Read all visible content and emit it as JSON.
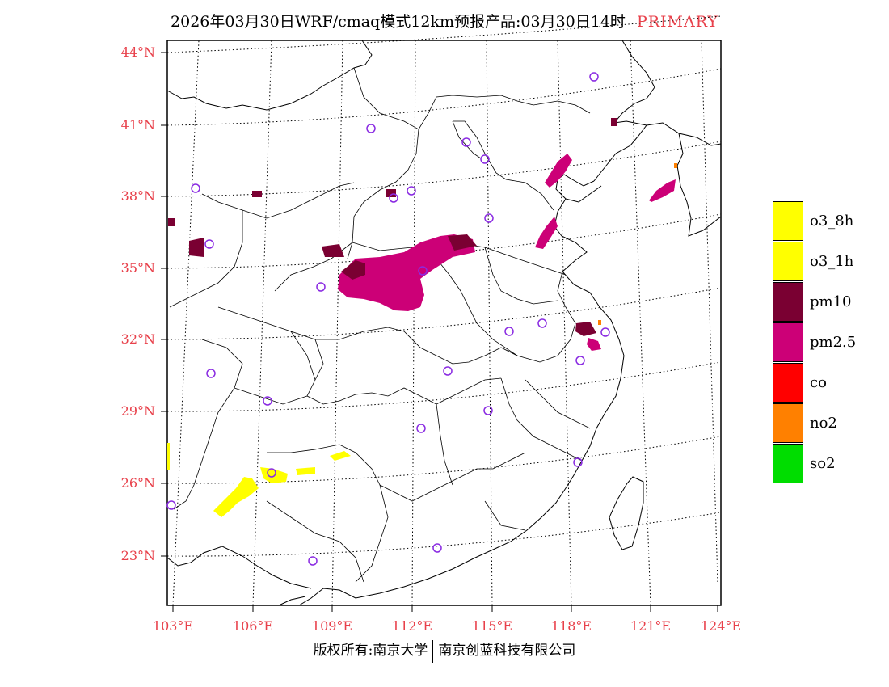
{
  "title": {
    "main": "2026年03月30日WRF/cmaq模式12km预报产品:03月30日14时",
    "tag": "PRIMARY"
  },
  "map": {
    "lat_labels": [
      "44°N",
      "41°N",
      "38°N",
      "35°N",
      "32°N",
      "29°N",
      "26°N",
      "23°N"
    ],
    "lon_labels": [
      "103°E",
      "106°E",
      "109°E",
      "112°E",
      "115°E",
      "118°E",
      "121°E",
      "124°E"
    ]
  },
  "legend": {
    "items": [
      {
        "label": "o3_8h",
        "color": "#ffff00"
      },
      {
        "label": "o3_1h",
        "color": "#ffff00"
      },
      {
        "label": "pm10",
        "color": "#7a0032"
      },
      {
        "label": "pm2.5",
        "color": "#cc0077"
      },
      {
        "label": "co",
        "color": "#ff0000"
      },
      {
        "label": "no2",
        "color": "#ff8000"
      },
      {
        "label": "so2",
        "color": "#00dd00"
      }
    ]
  },
  "footer": {
    "left": "版权所有:南京大学",
    "right": "南京创蓝科技有限公司"
  },
  "colors": {
    "accent_label": "#e8414b",
    "station_marker": "#8a2be2"
  }
}
